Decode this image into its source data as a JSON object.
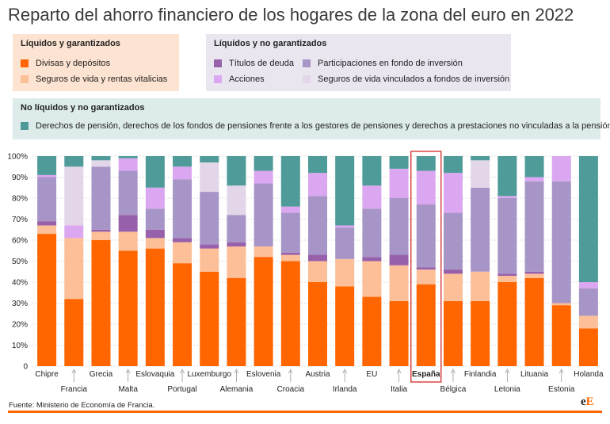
{
  "title": "Reparto del ahorro financiero de los hogares de la zona del euro en 2022",
  "legend": {
    "liquid_guaranteed": {
      "heading": "Líquidos y garantizados",
      "items": [
        {
          "label": "Divisas y depósitos",
          "color": "#ff6600"
        },
        {
          "label": "Seguros de vida y rentas vitalicias",
          "color": "#fdbf98"
        }
      ]
    },
    "liquid_not_guaranteed": {
      "heading": "Líquidos y no garantizados",
      "items": [
        {
          "label": "Títulos de deuda",
          "color": "#9760aa"
        },
        {
          "label": "Participaciones en fondo de inversión",
          "color": "#a795c8"
        },
        {
          "label": "Acciones",
          "color": "#dba7f0"
        },
        {
          "label": "Seguros de vida vinculados a fondos de inversión",
          "color": "#e2d6e8"
        }
      ]
    },
    "not_liquid": {
      "heading": "No líquidos y no garantizados",
      "items": [
        {
          "label": "Derechos de pensión, derechos de los fondos de pensiones frente a los gestores de pensiones y derechos a prestaciones no vinculadas a la pensión",
          "color": "#4e9b99"
        }
      ]
    }
  },
  "source": "Fuente: Ministerio de Economía de Francia.",
  "logo": {
    "e": "e",
    "E": "E"
  },
  "highlight": "España",
  "chart_data": {
    "type": "bar",
    "stacked": true,
    "ylim": [
      0,
      100
    ],
    "yticks": [
      "0",
      "10%",
      "20%",
      "30%",
      "40%",
      "50%",
      "60%",
      "70%",
      "80%",
      "90%",
      "100%"
    ],
    "categories": [
      "Chipre",
      "Francia",
      "Grecia",
      "Malta",
      "Eslovaquia",
      "Portugal",
      "Luxemburgo",
      "Alemania",
      "Eslovenia",
      "Croacia",
      "Austria",
      "Irlanda",
      "EU",
      "Italia",
      "España",
      "Bélgica",
      "Finlandia",
      "Letonia",
      "Lituania",
      "Estonia",
      "Holanda"
    ],
    "series": [
      {
        "name": "Divisas y depósitos",
        "color": "#ff6600",
        "values": [
          63,
          32,
          60,
          55,
          56,
          49,
          45,
          42,
          52,
          50,
          40,
          38,
          33,
          31,
          39,
          31,
          31,
          40,
          42,
          29,
          18
        ]
      },
      {
        "name": "Seguros de vida y rentas vitalicias",
        "color": "#fdbf98",
        "values": [
          4,
          29,
          4,
          9,
          5,
          10,
          11,
          15,
          5,
          3,
          10,
          13,
          17,
          17,
          7,
          13,
          14,
          3,
          2,
          1,
          6
        ]
      },
      {
        "name": "Títulos de deuda",
        "color": "#9760aa",
        "values": [
          2,
          0,
          1,
          8,
          4,
          2,
          2,
          2,
          0,
          1,
          3,
          0,
          2,
          5,
          1,
          2,
          0,
          1,
          1,
          0,
          0
        ]
      },
      {
        "name": "Participaciones en fondo de inversión",
        "color": "#a795c8",
        "values": [
          21,
          0,
          30,
          21,
          10,
          28,
          25,
          13,
          30,
          19,
          28,
          15,
          23,
          27,
          30,
          27,
          40,
          36,
          43,
          58,
          13
        ]
      },
      {
        "name": "Acciones",
        "color": "#dba7f0",
        "values": [
          1,
          6,
          0,
          6,
          10,
          6,
          0,
          0,
          6,
          3,
          11,
          1,
          11,
          14,
          16,
          19,
          0,
          1,
          2,
          12,
          3
        ]
      },
      {
        "name": "Seguros de vida vinculados a fondos de inversión",
        "color": "#e2d6e8",
        "values": [
          0,
          28,
          3,
          0,
          0,
          0,
          14,
          14,
          0,
          0,
          0,
          0,
          0,
          0,
          0,
          0,
          13,
          0,
          0,
          0,
          0
        ]
      },
      {
        "name": "Derechos de pensión",
        "color": "#4e9b99",
        "values": [
          9,
          5,
          2,
          1,
          15,
          5,
          3,
          14,
          7,
          24,
          8,
          33,
          14,
          6,
          7,
          8,
          2,
          19,
          10,
          0,
          60
        ]
      }
    ]
  }
}
